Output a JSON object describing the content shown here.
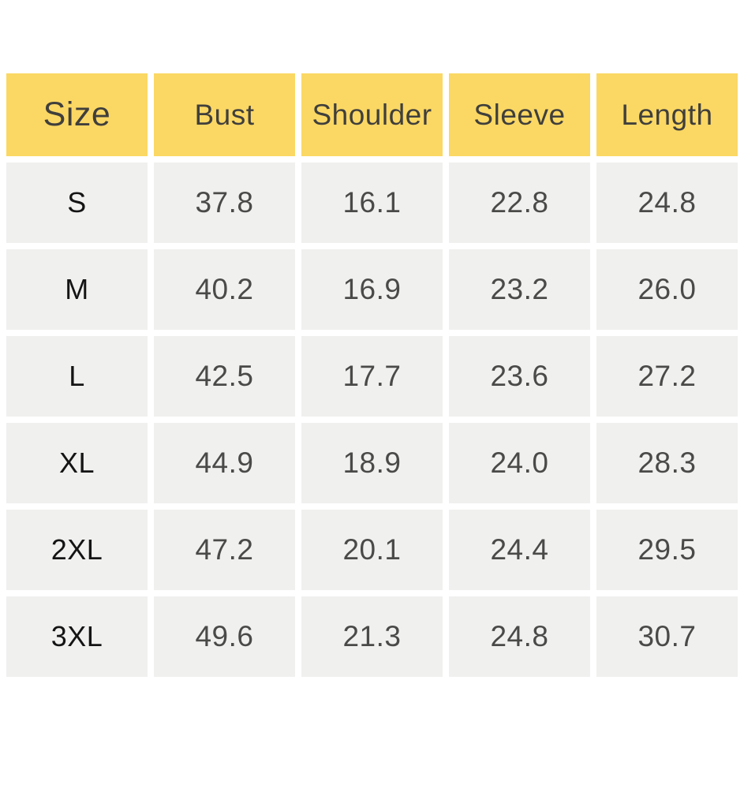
{
  "chart_data": {
    "type": "table",
    "title": "",
    "columns": [
      "Size",
      "Bust",
      "Shoulder",
      "Sleeve",
      "Length"
    ],
    "rows": [
      [
        "S",
        37.8,
        16.1,
        22.8,
        24.8
      ],
      [
        "M",
        40.2,
        16.9,
        23.2,
        26.0
      ],
      [
        "L",
        42.5,
        17.7,
        23.6,
        27.2
      ],
      [
        "XL",
        44.9,
        18.9,
        24.0,
        28.3
      ],
      [
        "2XL",
        47.2,
        20.1,
        24.4,
        29.5
      ],
      [
        "3XL",
        49.6,
        21.3,
        24.8,
        30.7
      ]
    ],
    "layout": {
      "header_position": "top",
      "grid": "white-gutters-between-cells"
    }
  },
  "table": {
    "headers": [
      "Size",
      "Bust",
      "Shoulder",
      "Sleeve",
      "Length"
    ],
    "rows": [
      {
        "size": "S",
        "bust": "37.8",
        "shoulder": "16.1",
        "sleeve": "22.8",
        "length": "24.8"
      },
      {
        "size": "M",
        "bust": "40.2",
        "shoulder": "16.9",
        "sleeve": "23.2",
        "length": "26.0"
      },
      {
        "size": "L",
        "bust": "42.5",
        "shoulder": "17.7",
        "sleeve": "23.6",
        "length": "27.2"
      },
      {
        "size": "XL",
        "bust": "44.9",
        "shoulder": "18.9",
        "sleeve": "24.0",
        "length": "28.3"
      },
      {
        "size": "2XL",
        "bust": "47.2",
        "shoulder": "20.1",
        "sleeve": "24.4",
        "length": "29.5"
      },
      {
        "size": "3XL",
        "bust": "49.6",
        "shoulder": "21.3",
        "sleeve": "24.8",
        "length": "30.7"
      }
    ]
  },
  "colors": {
    "background": "#ffffff",
    "header_bg": "#fbd864",
    "cell_bg": "#f0f0ef",
    "header_text": "#403f3c",
    "value_text": "#4a4a48",
    "size_text": "#141414"
  }
}
